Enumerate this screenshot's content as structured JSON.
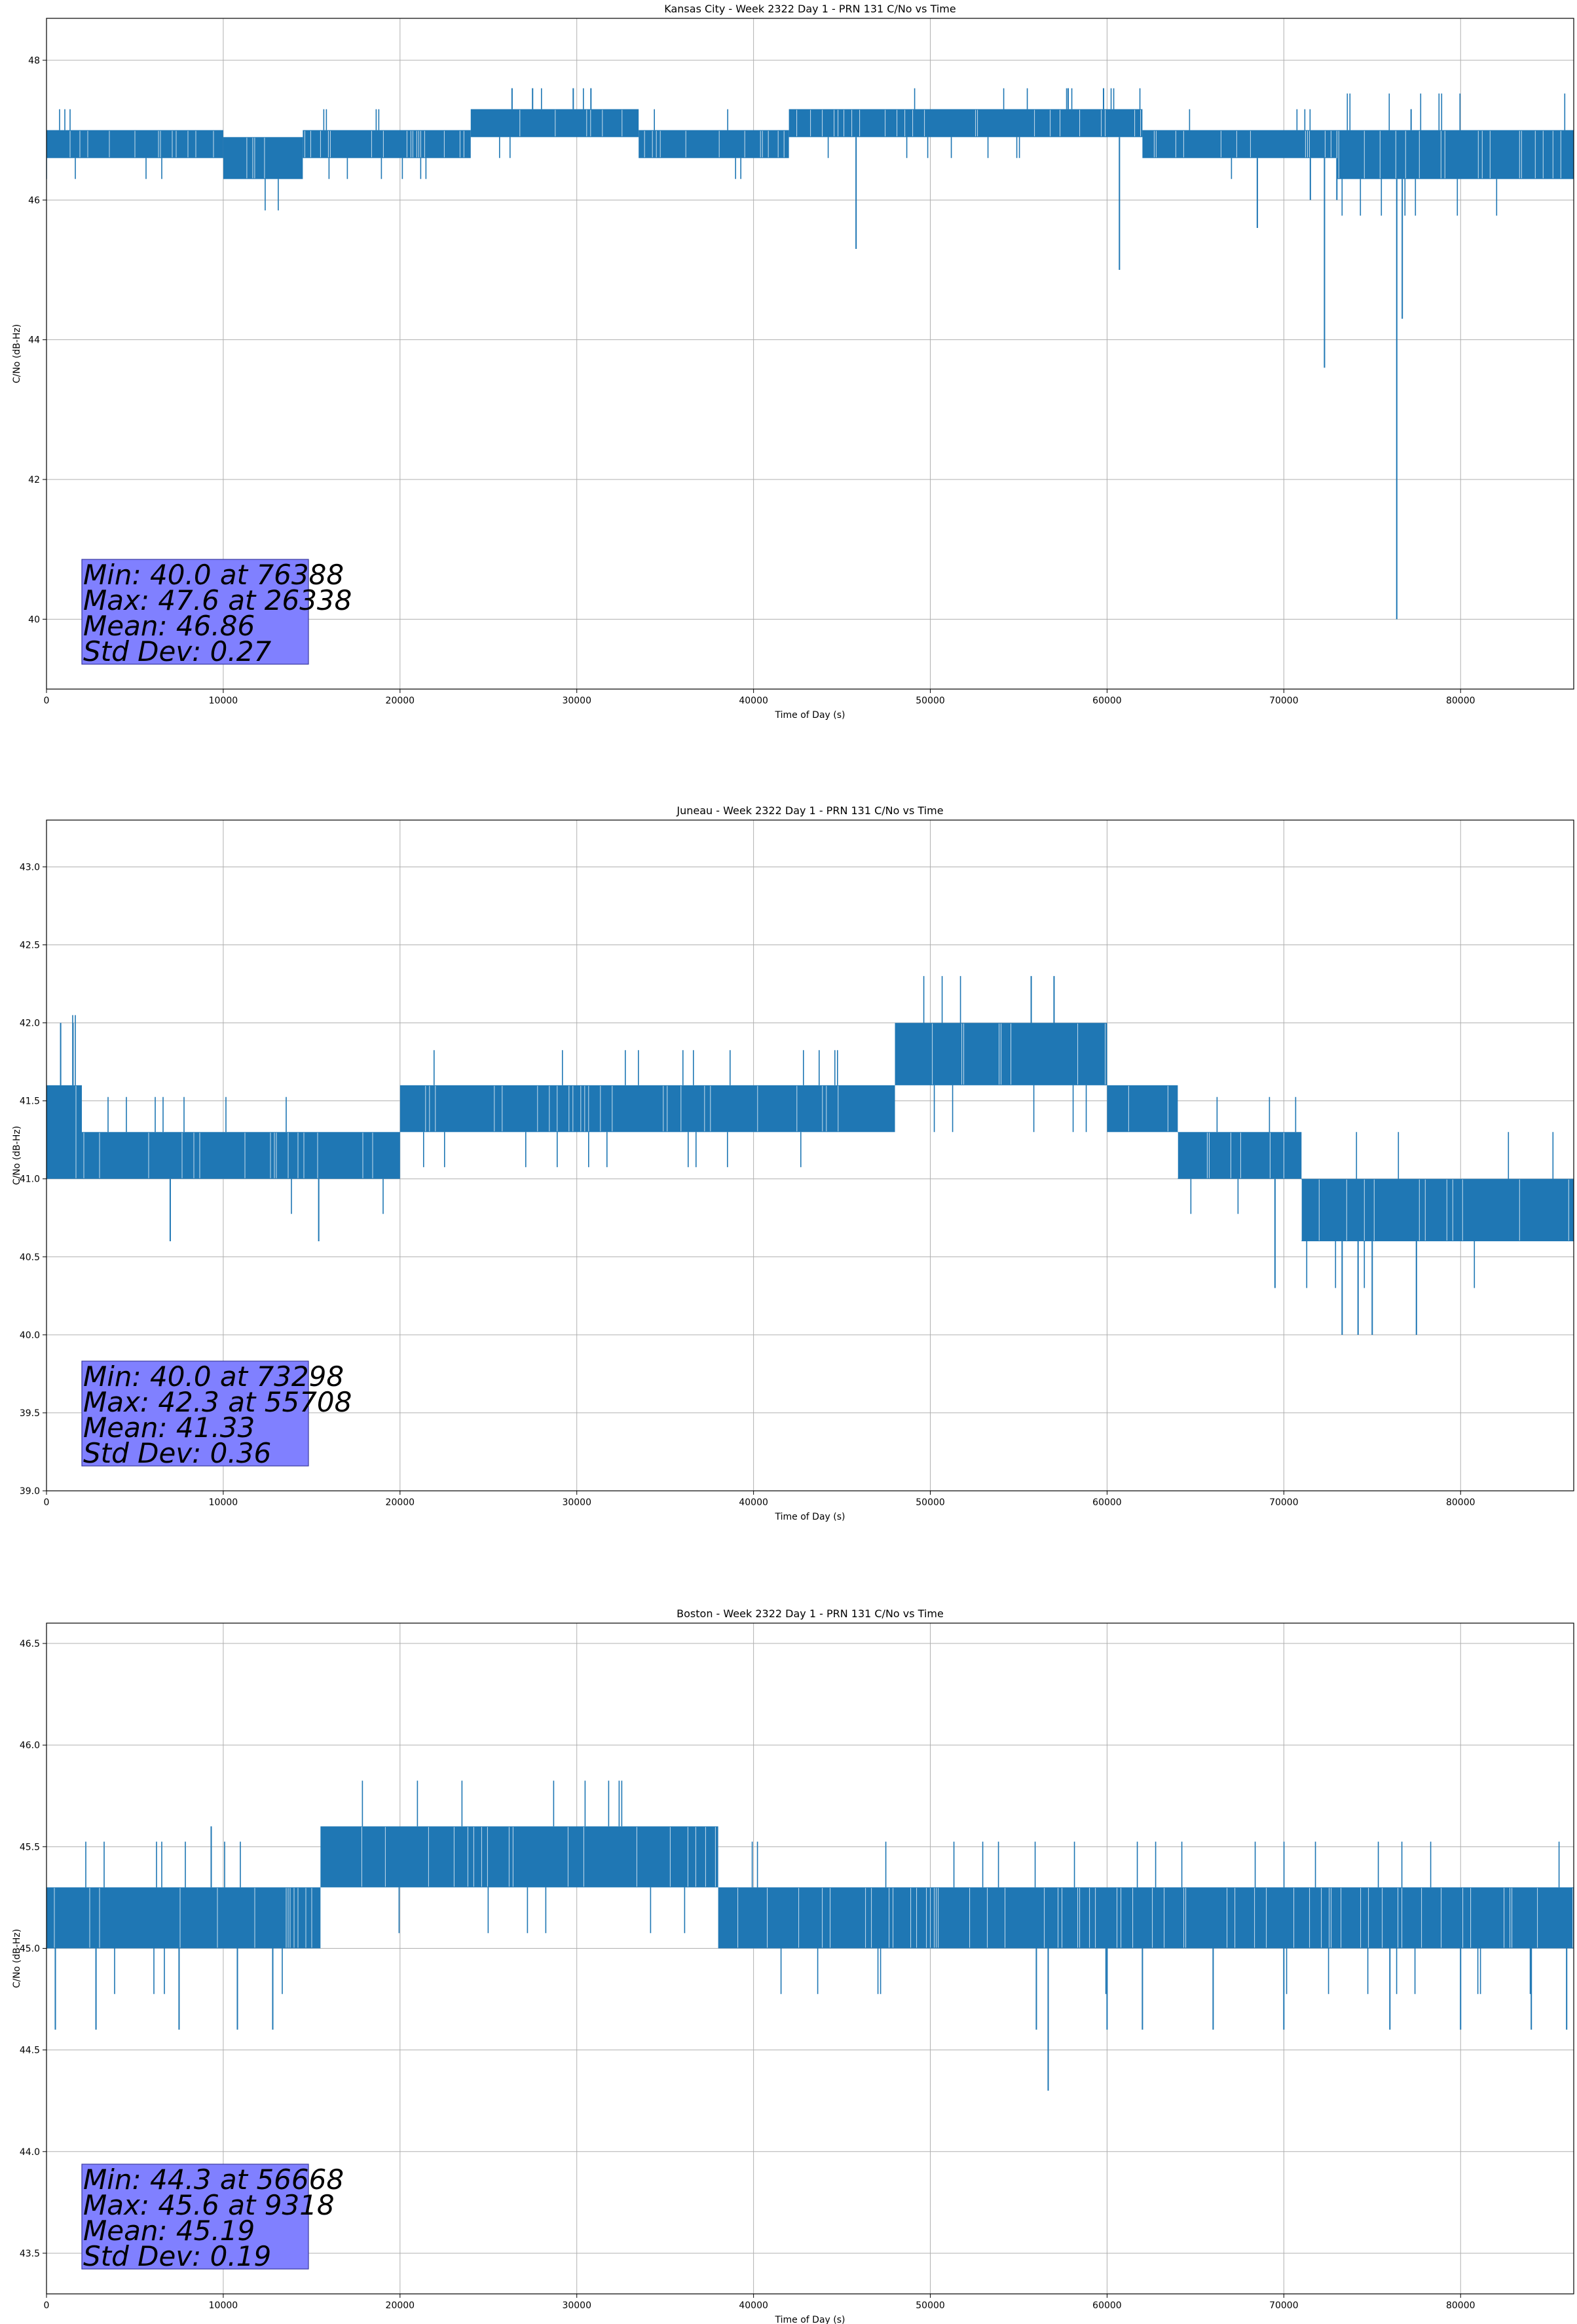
{
  "chart_data": [
    {
      "type": "line",
      "title": "Kansas City - Week 2322 Day 1 - PRN 131 C/No vs Time",
      "xlabel": "Time of Day (s)",
      "ylabel": "C/No (dB-Hz)",
      "xlim": [
        0,
        86400
      ],
      "ylim": [
        39,
        48.6
      ],
      "xticks": [
        0,
        10000,
        20000,
        30000,
        40000,
        50000,
        60000,
        70000,
        80000
      ],
      "yticks": [
        40,
        42,
        44,
        46,
        48
      ],
      "ytick_labels": [
        "40",
        "42",
        "44",
        "46",
        "48"
      ],
      "grid": true,
      "color": "#1f77b4",
      "stats": [
        "Min: 40.0 at 76388",
        "Max: 47.6 at 26338",
        "Mean: 46.86",
        "Std Dev: 0.27"
      ],
      "band_segments": [
        {
          "x": [
            0,
            10000
          ],
          "y": [
            46.6,
            47.0
          ]
        },
        {
          "x": [
            10000,
            14500
          ],
          "y": [
            46.3,
            46.9
          ]
        },
        {
          "x": [
            14500,
            24000
          ],
          "y": [
            46.6,
            47.0
          ]
        },
        {
          "x": [
            24000,
            33500
          ],
          "y": [
            46.9,
            47.3
          ]
        },
        {
          "x": [
            33500,
            42000
          ],
          "y": [
            46.6,
            47.0
          ]
        },
        {
          "x": [
            42000,
            62000
          ],
          "y": [
            46.9,
            47.3
          ]
        },
        {
          "x": [
            62000,
            73000
          ],
          "y": [
            46.6,
            47.0
          ]
        },
        {
          "x": [
            73000,
            86400
          ],
          "y": [
            46.3,
            47.0
          ]
        }
      ],
      "spikes": [
        {
          "x": 26338,
          "y": 47.6
        },
        {
          "x": 27500,
          "y": 47.6
        },
        {
          "x": 29800,
          "y": 47.6
        },
        {
          "x": 30800,
          "y": 47.6
        },
        {
          "x": 57800,
          "y": 47.6
        },
        {
          "x": 59800,
          "y": 47.6
        },
        {
          "x": 77200,
          "y": 47.3
        },
        {
          "x": 45800,
          "y": 45.3
        },
        {
          "x": 60700,
          "y": 45.0
        },
        {
          "x": 68500,
          "y": 45.6
        },
        {
          "x": 72300,
          "y": 43.6
        },
        {
          "x": 71500,
          "y": 46.0
        },
        {
          "x": 73000,
          "y": 46.0
        },
        {
          "x": 76388,
          "y": 40.0
        },
        {
          "x": 76700,
          "y": 44.3
        }
      ]
    },
    {
      "type": "line",
      "title": "Juneau - Week 2322 Day 1 - PRN 131 C/No vs Time",
      "xlabel": "Time of Day (s)",
      "ylabel": "C/No (dB-Hz)",
      "xlim": [
        0,
        86400
      ],
      "ylim": [
        39,
        43.3
      ],
      "xticks": [
        0,
        10000,
        20000,
        30000,
        40000,
        50000,
        60000,
        70000,
        80000
      ],
      "yticks": [
        39.0,
        39.5,
        40.0,
        40.5,
        41.0,
        41.5,
        42.0,
        42.5,
        43.0
      ],
      "ytick_labels": [
        "39.0",
        "39.5",
        "40.0",
        "40.5",
        "41.0",
        "41.5",
        "42.0",
        "42.5",
        "43.0"
      ],
      "grid": true,
      "color": "#1f77b4",
      "stats": [
        "Min: 40.0 at 73298",
        "Max: 42.3 at 55708",
        "Mean: 41.33",
        "Std Dev: 0.36"
      ],
      "band_segments": [
        {
          "x": [
            0,
            2000
          ],
          "y": [
            41.0,
            41.6
          ]
        },
        {
          "x": [
            2000,
            20000
          ],
          "y": [
            41.0,
            41.3
          ]
        },
        {
          "x": [
            20000,
            48000
          ],
          "y": [
            41.3,
            41.6
          ]
        },
        {
          "x": [
            48000,
            60000
          ],
          "y": [
            41.6,
            42.0
          ]
        },
        {
          "x": [
            60000,
            64000
          ],
          "y": [
            41.3,
            41.6
          ]
        },
        {
          "x": [
            64000,
            71000
          ],
          "y": [
            41.0,
            41.3
          ]
        },
        {
          "x": [
            71000,
            86400
          ],
          "y": [
            40.6,
            41.0
          ]
        }
      ],
      "spikes": [
        {
          "x": 55708,
          "y": 42.3
        },
        {
          "x": 57000,
          "y": 42.3
        },
        {
          "x": 800,
          "y": 42.0
        },
        {
          "x": 1500,
          "y": 42.0
        },
        {
          "x": 7000,
          "y": 40.6
        },
        {
          "x": 15400,
          "y": 40.6
        },
        {
          "x": 69500,
          "y": 40.3
        },
        {
          "x": 73298,
          "y": 40.0
        },
        {
          "x": 74200,
          "y": 40.0
        },
        {
          "x": 75000,
          "y": 40.0
        },
        {
          "x": 77500,
          "y": 40.0
        }
      ]
    },
    {
      "type": "line",
      "title": "Boston - Week 2322 Day 1 - PRN 131 C/No vs Time",
      "xlabel": "Time of Day (s)",
      "ylabel": "C/No (dB-Hz)",
      "xlim": [
        0,
        86400
      ],
      "ylim": [
        43.3,
        46.6
      ],
      "xticks": [
        0,
        10000,
        20000,
        30000,
        40000,
        50000,
        60000,
        70000,
        80000
      ],
      "yticks": [
        43.5,
        44.0,
        44.5,
        45.0,
        45.5,
        46.0,
        46.5
      ],
      "ytick_labels": [
        "43.5",
        "44.0",
        "44.5",
        "45.0",
        "45.5",
        "46.0",
        "46.5"
      ],
      "grid": true,
      "color": "#1f77b4",
      "stats": [
        "Min: 44.3 at 56668",
        "Max: 45.6 at 9318",
        "Mean: 45.19",
        "Std Dev: 0.19"
      ],
      "band_segments": [
        {
          "x": [
            0,
            15500
          ],
          "y": [
            45.0,
            45.3
          ]
        },
        {
          "x": [
            15500,
            38000
          ],
          "y": [
            45.3,
            45.6
          ]
        },
        {
          "x": [
            38000,
            86400
          ],
          "y": [
            45.0,
            45.3
          ]
        }
      ],
      "spikes": [
        {
          "x": 9318,
          "y": 45.6
        },
        {
          "x": 56668,
          "y": 44.3
        },
        {
          "x": 500,
          "y": 44.6
        },
        {
          "x": 2800,
          "y": 44.6
        },
        {
          "x": 7500,
          "y": 44.6
        },
        {
          "x": 10800,
          "y": 44.6
        },
        {
          "x": 12800,
          "y": 44.6
        },
        {
          "x": 56000,
          "y": 44.6
        },
        {
          "x": 60000,
          "y": 44.6
        },
        {
          "x": 62000,
          "y": 44.6
        },
        {
          "x": 66000,
          "y": 44.6
        },
        {
          "x": 70000,
          "y": 44.6
        },
        {
          "x": 76000,
          "y": 44.6
        },
        {
          "x": 80000,
          "y": 44.6
        },
        {
          "x": 84000,
          "y": 44.6
        },
        {
          "x": 86000,
          "y": 44.6
        }
      ]
    }
  ]
}
